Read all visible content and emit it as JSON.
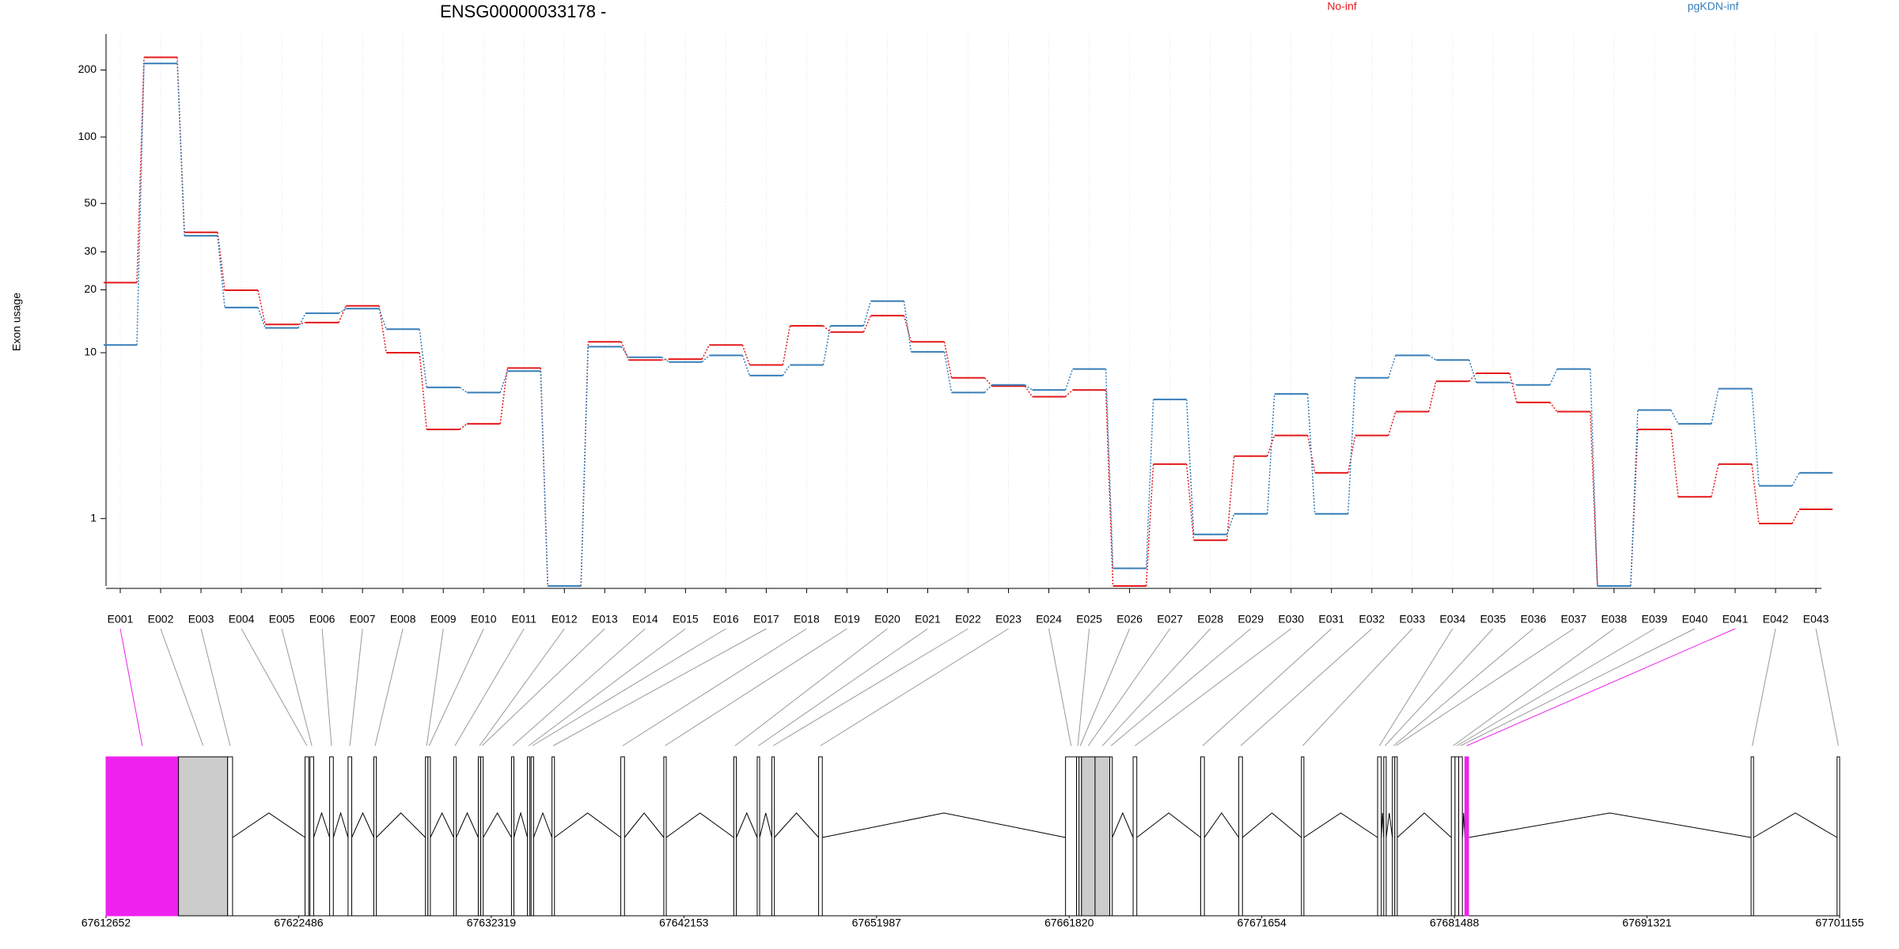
{
  "chart_data": [
    {
      "type": "step",
      "title": "ENSG00000033178 -",
      "ylabel": "Exon usage",
      "categories": [
        "E001",
        "E002",
        "E003",
        "E004",
        "E005",
        "E006",
        "E007",
        "E008",
        "E009",
        "E010",
        "E011",
        "E012",
        "E013",
        "E014",
        "E015",
        "E016",
        "E017",
        "E018",
        "E019",
        "E020",
        "E021",
        "E022",
        "E023",
        "E024",
        "E025",
        "E026",
        "E027",
        "E028",
        "E029",
        "E030",
        "E031",
        "E032",
        "E033",
        "E034",
        "E035",
        "E036",
        "E037",
        "E038",
        "E039",
        "E040",
        "E041",
        "E042",
        "E043"
      ],
      "series": [
        {
          "name": "No-inf",
          "color": "#e41a1c",
          "values": [
            21.6,
            228,
            36.9,
            19.9,
            13.7,
            14.0,
            16.8,
            10,
            4.0,
            4.3,
            8.4,
            0,
            11.3,
            9.2,
            9.3,
            10.9,
            8.7,
            13.5,
            12.6,
            15.1,
            11.3,
            7.5,
            6.8,
            6.0,
            6.5,
            0,
            2.5,
            0.6,
            2.8,
            3.7,
            2.2,
            3.7,
            5.0,
            7.2,
            7.9,
            5.6,
            5.0,
            0,
            4.0,
            1.5,
            2.5,
            0.9,
            1.2
          ]
        },
        {
          "name": "pgKDN-inf",
          "color": "#377eb8",
          "values": [
            10.9,
            214,
            35.6,
            16.5,
            13.2,
            15.5,
            16.3,
            13.0,
            6.7,
            6.3,
            8.1,
            0,
            10.7,
            9.5,
            9.0,
            9.7,
            7.7,
            8.7,
            13.5,
            17.7,
            10.1,
            6.3,
            6.9,
            6.5,
            8.3,
            0.2,
            5.8,
            0.7,
            1.1,
            6.2,
            1.1,
            7.5,
            9.7,
            9.2,
            7.1,
            6.9,
            8.3,
            0,
            5.1,
            4.3,
            6.6,
            1.8,
            2.2
          ]
        }
      ],
      "ylim": [
        0,
        290
      ],
      "yticks": [
        1,
        10,
        20,
        30,
        50,
        100,
        200
      ],
      "yscale": "log1p",
      "grid": true,
      "legend": "top"
    },
    {
      "type": "gene-model",
      "xlim": [
        67612652,
        67701155
      ],
      "xticks": [
        67612652,
        67622486,
        67632319,
        67642153,
        67651987,
        67661820,
        67671654,
        67681488,
        67691321,
        67701155
      ],
      "exons": [
        {
          "start": 67612652,
          "end": 67616352,
          "color": "#ee22ee"
        },
        {
          "start": 67616352,
          "end": 67618861,
          "color": "#cccccc"
        },
        {
          "start": 67618861,
          "end": 67619112,
          "color": "#ffffff"
        },
        {
          "start": 67622813,
          "end": 67623001,
          "color": "#ffffff"
        },
        {
          "start": 67623064,
          "end": 67623252,
          "color": "#ffffff"
        },
        {
          "start": 67624067,
          "end": 67624255,
          "color": "#ffffff"
        },
        {
          "start": 67625008,
          "end": 67625196,
          "color": "#ffffff"
        },
        {
          "start": 67626325,
          "end": 67626450,
          "color": "#ffffff"
        },
        {
          "start": 67628959,
          "end": 67629085,
          "color": "#ffffff"
        },
        {
          "start": 67629085,
          "end": 67629210,
          "color": "#ffffff"
        },
        {
          "start": 67630402,
          "end": 67630527,
          "color": "#ffffff"
        },
        {
          "start": 67631656,
          "end": 67631782,
          "color": "#ffffff"
        },
        {
          "start": 67631782,
          "end": 67631907,
          "color": "#ffffff"
        },
        {
          "start": 67633350,
          "end": 67633475,
          "color": "#ffffff"
        },
        {
          "start": 67634165,
          "end": 67634290,
          "color": "#ffffff"
        },
        {
          "start": 67634353,
          "end": 67634479,
          "color": "#ffffff"
        },
        {
          "start": 67635419,
          "end": 67635545,
          "color": "#ffffff"
        },
        {
          "start": 67638932,
          "end": 67639120,
          "color": "#ffffff"
        },
        {
          "start": 67641127,
          "end": 67641252,
          "color": "#ffffff"
        },
        {
          "start": 67644702,
          "end": 67644827,
          "color": "#ffffff"
        },
        {
          "start": 67645894,
          "end": 67646019,
          "color": "#ffffff"
        },
        {
          "start": 67646644,
          "end": 67646770,
          "color": "#ffffff"
        },
        {
          "start": 67649030,
          "end": 67649218,
          "color": "#ffffff"
        },
        {
          "start": 67661635,
          "end": 67662201,
          "color": "#ffffff"
        },
        {
          "start": 67662201,
          "end": 67662326,
          "color": "#ffffff"
        },
        {
          "start": 67662326,
          "end": 67662452,
          "color": "#ffffff"
        },
        {
          "start": 67662452,
          "end": 67663142,
          "color": "#cccccc"
        },
        {
          "start": 67663142,
          "end": 67663894,
          "color": "#cccccc"
        },
        {
          "start": 67663894,
          "end": 67664020,
          "color": "#ffffff"
        },
        {
          "start": 67665086,
          "end": 67665274,
          "color": "#ffffff"
        },
        {
          "start": 67668536,
          "end": 67668724,
          "color": "#ffffff"
        },
        {
          "start": 67670480,
          "end": 67670668,
          "color": "#ffffff"
        },
        {
          "start": 67673679,
          "end": 67673804,
          "color": "#ffffff"
        },
        {
          "start": 67677567,
          "end": 67677755,
          "color": "#ffffff"
        },
        {
          "start": 67677881,
          "end": 67678006,
          "color": "#ffffff"
        },
        {
          "start": 67678320,
          "end": 67678445,
          "color": "#ffffff"
        },
        {
          "start": 67678445,
          "end": 67678571,
          "color": "#ffffff"
        },
        {
          "start": 67681331,
          "end": 67681519,
          "color": "#ffffff"
        },
        {
          "start": 67681519,
          "end": 67681707,
          "color": "#ffffff"
        },
        {
          "start": 67681707,
          "end": 67681895,
          "color": "#ffffff"
        },
        {
          "start": 67682021,
          "end": 67682210,
          "color": "#ee22ee"
        },
        {
          "start": 67696634,
          "end": 67696759,
          "color": "#ffffff"
        },
        {
          "start": 67701024,
          "end": 67701155,
          "color": "#ffffff"
        }
      ]
    }
  ]
}
